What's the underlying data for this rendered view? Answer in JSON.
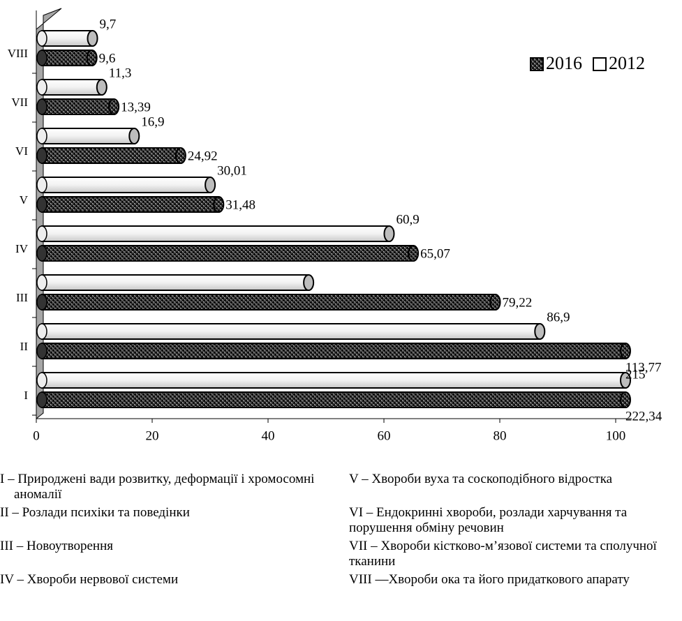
{
  "chart_data": {
    "type": "bar",
    "orientation": "horizontal",
    "categories": [
      "I",
      "II",
      "III",
      "IV",
      "V",
      "VI",
      "VII",
      "VIII"
    ],
    "series": [
      {
        "name": "2016",
        "color": "#3a3a3a",
        "values": [
          222.34,
          113.77,
          79.22,
          65.07,
          31.48,
          24.92,
          13.39,
          9.6
        ],
        "value_labels": [
          "222,34",
          "113,77",
          "79,22",
          "65,07",
          "31,48",
          "24,92",
          "13,39",
          "9,6"
        ]
      },
      {
        "name": "2012",
        "color": "#ffffff",
        "values": [
          215,
          86.9,
          47,
          60.9,
          30.01,
          16.9,
          11.3,
          9.7
        ],
        "value_labels": [
          "215",
          "86,9",
          null,
          "60,9",
          "30,01",
          "16,9",
          "11,3",
          "9,7"
        ]
      }
    ],
    "xlim": [
      0,
      100
    ],
    "xticks": [
      0,
      20,
      40,
      60,
      80,
      100
    ],
    "legend": "upper right",
    "notes": [
      "I – Природжені вади розвитку, деформації і хромосомні аномалії",
      "II – Розлади психіки та поведінки",
      "III – Новоутворення",
      "IV – Хвороби нервової системи",
      "V – Хвороби вуха та соскоподібного відростка",
      "VI – Ендокринні хвороби, розлади харчування та порушення обміну речовин",
      "VII – Хвороби кістково-м’язової системи та сполучної тканини",
      "VIII —Хвороби ока та його придаткового апарату"
    ]
  }
}
